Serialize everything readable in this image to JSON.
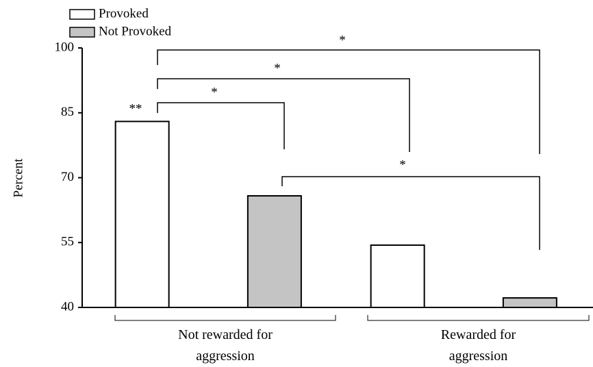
{
  "chart_data": {
    "type": "bar",
    "y_label": "Percent",
    "categories": [
      "Not rewarded for aggression",
      "Rewarded for aggression"
    ],
    "series": [
      {
        "name": "Provoked",
        "color": "#ffffff",
        "values": [
          83,
          54.4
        ]
      },
      {
        "name": "Not Provoked",
        "color": "#c4c4c4",
        "values": [
          65.8,
          42.2
        ]
      }
    ],
    "ylim": [
      40,
      100
    ],
    "yticks": [
      40,
      55,
      70,
      85,
      100
    ],
    "annotations": [
      "**",
      "*",
      "*",
      "*",
      "*"
    ]
  }
}
